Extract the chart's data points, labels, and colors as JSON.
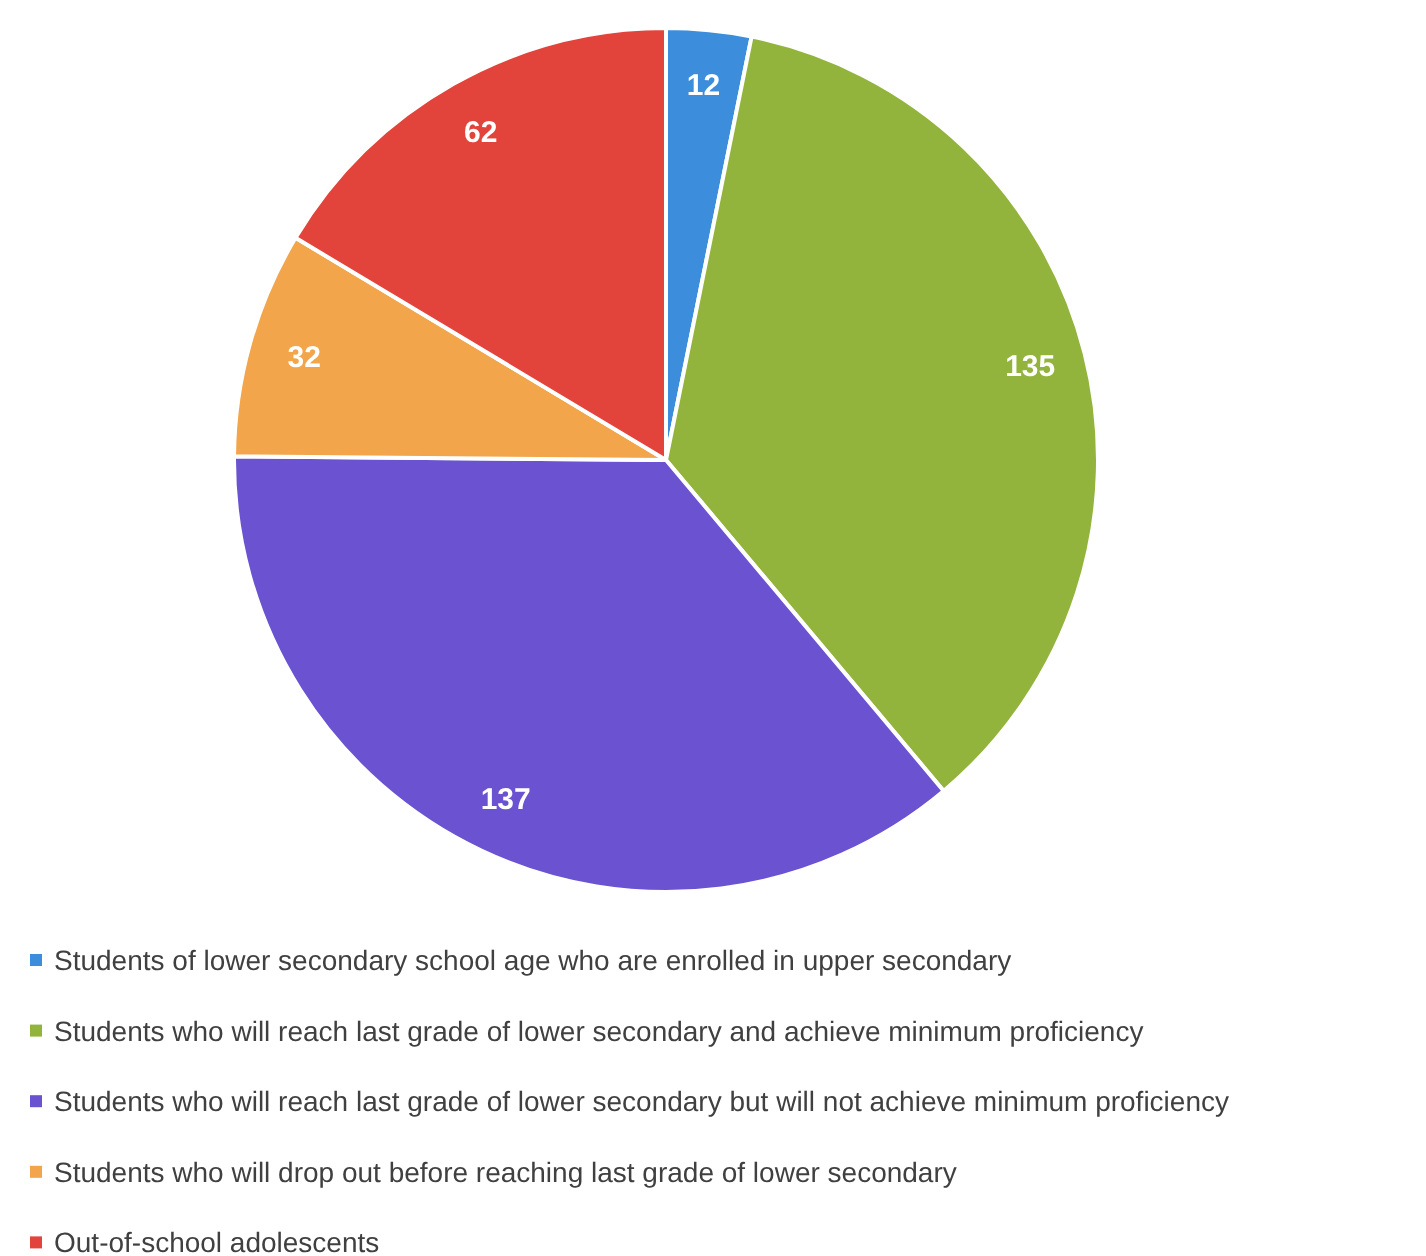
{
  "chart_data": {
    "type": "pie",
    "categories": [
      "Students of lower secondary school age who are enrolled in upper secondary",
      "Students who will reach last grade of lower secondary and achieve minimum proficiency",
      "Students who will reach last grade of lower secondary but will not achieve minimum proficiency",
      "Students who will drop out before reaching last grade of lower secondary",
      "Out-of-school adolescents"
    ],
    "values": [
      12,
      135,
      137,
      32,
      62
    ],
    "colors": [
      "#3c8ddc",
      "#92b43c",
      "#6a52d0",
      "#f2a54a",
      "#e2433a"
    ],
    "data_labels": true,
    "legend": "bottom"
  }
}
